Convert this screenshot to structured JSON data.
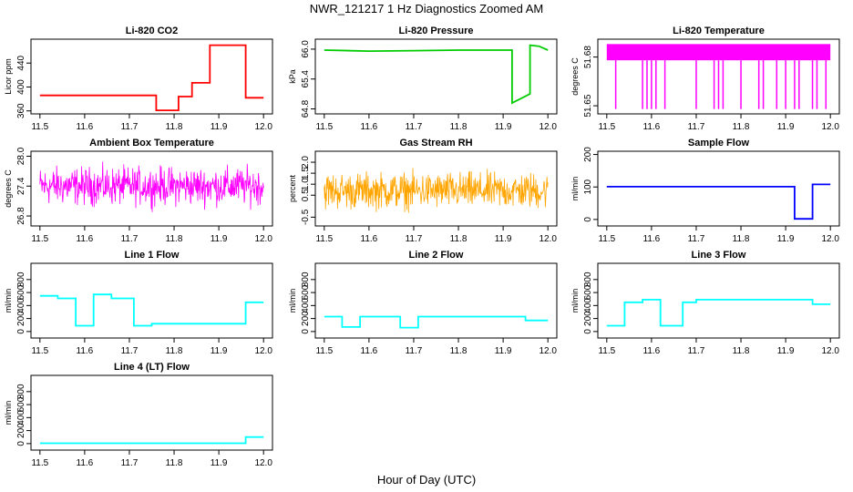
{
  "title": "NWR_121217  1 Hz Diagnostics Zoomed AM",
  "x_axis_label": "Hour of Day (UTC)",
  "x_ticks": [
    "11.5",
    "11.6",
    "11.7",
    "11.8",
    "11.9",
    "12.0"
  ],
  "chart_data": [
    {
      "type": "line",
      "title": "Li-820 CO2",
      "ylabel": "Licor ppm",
      "color": "#ff0000",
      "xlim": [
        11.48,
        12.02
      ],
      "ylim": [
        355,
        480
      ],
      "yticks": [
        "360",
        "400",
        "440"
      ],
      "ytick_values": [
        360,
        400,
        440
      ],
      "series": [
        {
          "x": [
            11.5,
            11.76,
            11.76,
            11.81,
            11.81,
            11.84,
            11.84,
            11.88,
            11.88,
            11.96,
            11.96,
            12.0
          ],
          "y": [
            386,
            386,
            361,
            361,
            384,
            384,
            407,
            407,
            470,
            470,
            382,
            382
          ]
        }
      ]
    },
    {
      "type": "line",
      "title": "Li-820 Pressure",
      "ylabel": "kPa",
      "color": "#00cc00",
      "xlim": [
        11.48,
        12.02
      ],
      "ylim": [
        64.7,
        66.2
      ],
      "yticks": [
        "64.8",
        "65.4",
        "66.0"
      ],
      "ytick_values": [
        64.8,
        65.4,
        66.0
      ],
      "series": [
        {
          "x": [
            11.5,
            11.6,
            11.7,
            11.8,
            11.9,
            11.92,
            11.92,
            11.96,
            11.96,
            11.98,
            12.0
          ],
          "y": [
            65.98,
            65.96,
            65.97,
            65.98,
            65.98,
            65.98,
            64.92,
            65.1,
            66.08,
            66.06,
            65.98
          ]
        }
      ]
    },
    {
      "type": "line",
      "title": "Li-820 Temperature",
      "ylabel": "degrees C",
      "color": "#ff00ff",
      "xlim": [
        11.48,
        12.02
      ],
      "ylim": [
        51.645,
        51.691
      ],
      "yticks": [
        "51.65",
        "51.68"
      ],
      "ytick_values": [
        51.65,
        51.68
      ],
      "band": [
        51.678,
        51.688
      ],
      "spikes_x": [
        11.52,
        11.58,
        11.59,
        11.6,
        11.61,
        11.63,
        11.7,
        11.74,
        11.75,
        11.76,
        11.8,
        11.84,
        11.85,
        11.88,
        11.9,
        11.92,
        11.93,
        11.96,
        11.97,
        11.99
      ],
      "spikes_low": 51.648
    },
    {
      "type": "line",
      "title": "Ambient Box Temperature",
      "ylabel": "degrees C",
      "color": "#ff00ff",
      "xlim": [
        11.48,
        12.02
      ],
      "ylim": [
        26.6,
        28.1
      ],
      "yticks": [
        "26.8",
        "27.4",
        "28.0"
      ],
      "ytick_values": [
        26.8,
        27.4,
        28.0
      ],
      "noise": {
        "center": 27.4,
        "amplitude": 0.55,
        "from": 11.5,
        "to": 12.0
      }
    },
    {
      "type": "line",
      "title": "Gas Stream RH",
      "ylabel": "percent",
      "color": "#ffa500",
      "xlim": [
        11.48,
        12.02
      ],
      "ylim": [
        -0.9,
        2.5
      ],
      "yticks": [
        "-0.5",
        "0.5",
        "1.0",
        "1.5",
        "2.0"
      ],
      "ytick_values": [
        -0.5,
        0.5,
        1.0,
        1.5,
        2.0
      ],
      "noise": {
        "center": 0.7,
        "amplitude": 1.2,
        "from": 11.5,
        "to": 12.0
      }
    },
    {
      "type": "line",
      "title": "Sample Flow",
      "ylabel": "ml/min",
      "color": "#0000ff",
      "xlim": [
        11.48,
        12.02
      ],
      "ylim": [
        -20,
        210
      ],
      "yticks": [
        "0",
        "100",
        "200"
      ],
      "ytick_values": [
        0,
        100,
        200
      ],
      "series": [
        {
          "x": [
            11.5,
            11.92,
            11.92,
            11.96,
            11.96,
            12.0
          ],
          "y": [
            101,
            101,
            2,
            2,
            108,
            108
          ]
        }
      ]
    },
    {
      "type": "line",
      "title": "Line 1 Flow",
      "ylabel": "ml/min",
      "color": "#00ffff",
      "xlim": [
        11.48,
        12.02
      ],
      "ylim": [
        -100,
        1050
      ],
      "yticks": [
        "0",
        "200",
        "400",
        "600",
        "800"
      ],
      "ytick_values": [
        0,
        200,
        400,
        600,
        800
      ],
      "series": [
        {
          "x": [
            11.5,
            11.54,
            11.54,
            11.58,
            11.58,
            11.62,
            11.62,
            11.66,
            11.66,
            11.71,
            11.71,
            11.75,
            11.75,
            11.96,
            11.96,
            12.0
          ],
          "y": [
            550,
            550,
            510,
            510,
            90,
            90,
            570,
            570,
            510,
            510,
            90,
            90,
            120,
            120,
            450,
            450
          ]
        }
      ]
    },
    {
      "type": "line",
      "title": "Line 2 Flow",
      "ylabel": "ml/min",
      "color": "#00ffff",
      "xlim": [
        11.48,
        12.02
      ],
      "ylim": [
        -100,
        1050
      ],
      "yticks": [
        "0",
        "200",
        "400",
        "600",
        "800"
      ],
      "ytick_values": [
        0,
        200,
        400,
        600,
        800
      ],
      "series": [
        {
          "x": [
            11.5,
            11.54,
            11.54,
            11.58,
            11.58,
            11.67,
            11.67,
            11.71,
            11.71,
            11.95,
            11.95,
            12.0
          ],
          "y": [
            230,
            230,
            70,
            70,
            230,
            230,
            60,
            60,
            230,
            230,
            170,
            170
          ]
        }
      ]
    },
    {
      "type": "line",
      "title": "Line 3 Flow",
      "ylabel": "ml/min",
      "color": "#00ffff",
      "xlim": [
        11.48,
        12.02
      ],
      "ylim": [
        -100,
        1050
      ],
      "yticks": [
        "0",
        "200",
        "400",
        "600",
        "800"
      ],
      "ytick_values": [
        0,
        200,
        400,
        600,
        800
      ],
      "series": [
        {
          "x": [
            11.5,
            11.54,
            11.54,
            11.58,
            11.58,
            11.62,
            11.62,
            11.67,
            11.67,
            11.7,
            11.7,
            11.96,
            11.96,
            12.0
          ],
          "y": [
            90,
            90,
            450,
            450,
            490,
            490,
            90,
            90,
            450,
            450,
            490,
            490,
            420,
            420
          ]
        }
      ]
    },
    {
      "type": "line",
      "title": "Line 4 (LT) Flow",
      "ylabel": "ml/min",
      "color": "#00ffff",
      "xlim": [
        11.48,
        12.02
      ],
      "ylim": [
        -100,
        1050
      ],
      "yticks": [
        "0",
        "200",
        "400",
        "600",
        "800"
      ],
      "ytick_values": [
        0,
        200,
        400,
        600,
        800
      ],
      "series": [
        {
          "x": [
            11.5,
            11.96,
            11.96,
            12.0
          ],
          "y": [
            5,
            5,
            100,
            100
          ]
        }
      ]
    }
  ]
}
